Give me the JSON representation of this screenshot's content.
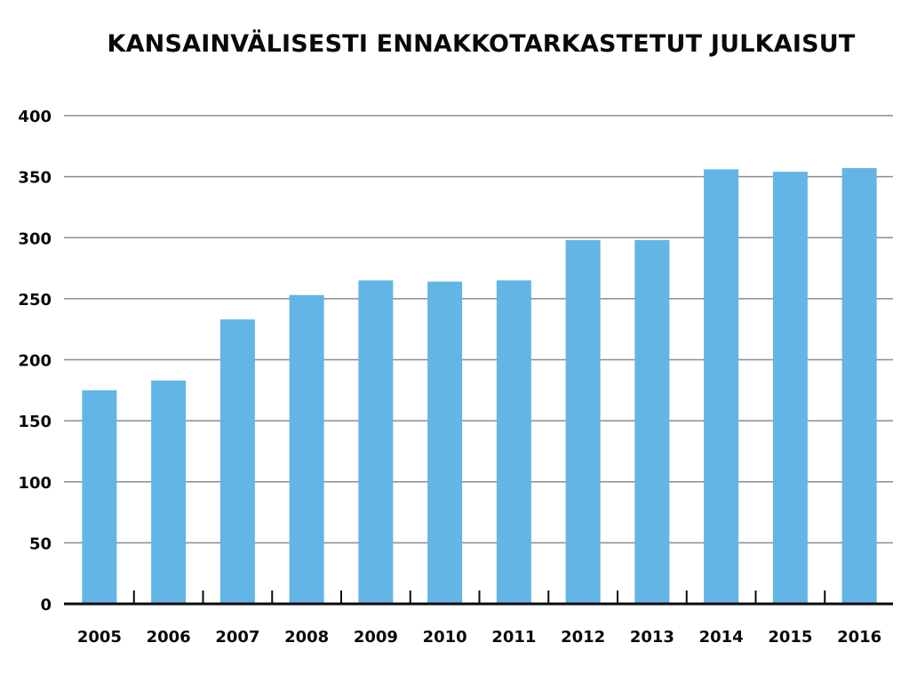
{
  "chart_data": {
    "type": "bar",
    "title": "KANSAINVÄLISESTI ENNAKKOTARKASTETUT JULKAISUT",
    "xlabel": "",
    "ylabel": "",
    "categories": [
      "2005",
      "2006",
      "2007",
      "2008",
      "2009",
      "2010",
      "2011",
      "2012",
      "2013",
      "2014",
      "2015",
      "2016"
    ],
    "values": [
      175,
      183,
      233,
      253,
      265,
      264,
      265,
      298,
      298,
      356,
      354,
      357
    ],
    "ylim": [
      0,
      400
    ],
    "yticks": [
      0,
      50,
      100,
      150,
      200,
      250,
      300,
      350,
      400
    ],
    "grid": true,
    "legend": "none",
    "colors": {
      "bar": "#62b5e5",
      "grid": "#8c8c8c",
      "axis": "#0a0a0a",
      "text": "#0a0a0a"
    }
  }
}
